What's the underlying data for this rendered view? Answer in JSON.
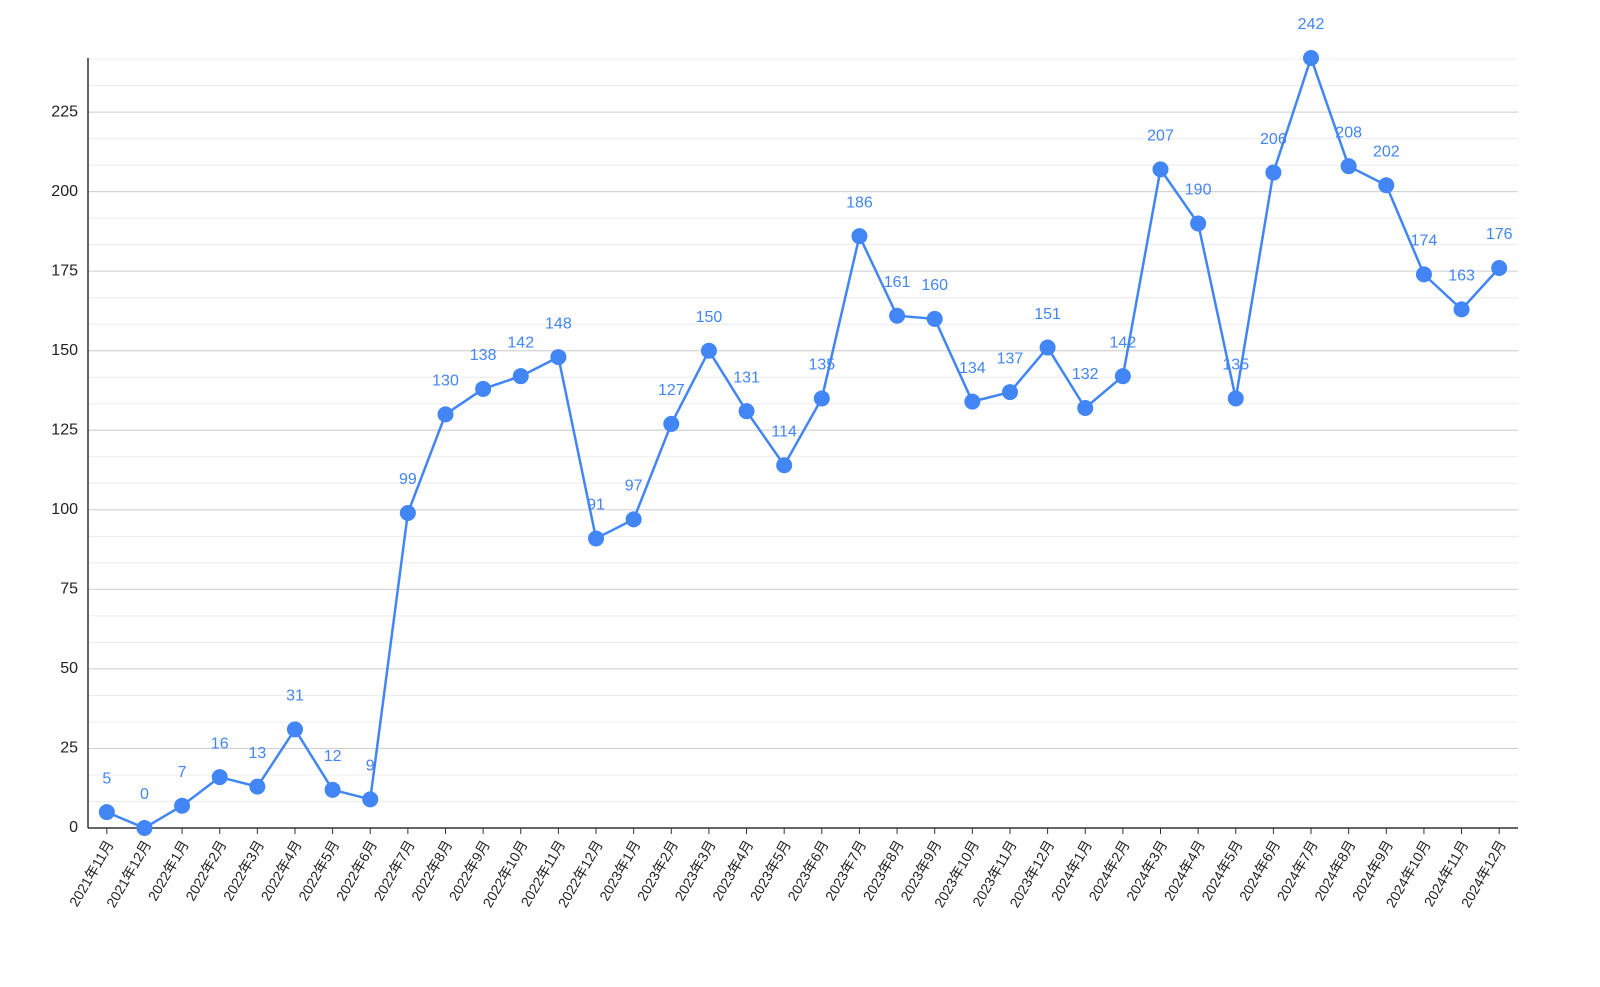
{
  "chart_data": {
    "type": "line",
    "categories": [
      "2021年11月",
      "2021年12月",
      "2022年1月",
      "2022年2月",
      "2022年3月",
      "2022年4月",
      "2022年5月",
      "2022年6月",
      "2022年7月",
      "2022年8月",
      "2022年9月",
      "2022年10月",
      "2022年11月",
      "2022年12月",
      "2023年1月",
      "2023年2月",
      "2023年3月",
      "2023年4月",
      "2023年5月",
      "2023年6月",
      "2023年7月",
      "2023年8月",
      "2023年9月",
      "2023年10月",
      "2023年11月",
      "2023年12月",
      "2024年1月",
      "2024年2月",
      "2024年3月",
      "2024年4月",
      "2024年5月",
      "2024年6月",
      "2024年7月",
      "2024年8月",
      "2024年9月",
      "2024年10月",
      "2024年11月",
      "2024年12月"
    ],
    "values": [
      5,
      0,
      7,
      16,
      13,
      31,
      12,
      9,
      99,
      130,
      138,
      142,
      148,
      91,
      97,
      127,
      150,
      131,
      114,
      135,
      186,
      161,
      160,
      134,
      137,
      151,
      132,
      142,
      207,
      190,
      135,
      206,
      242,
      208,
      202,
      174,
      163,
      176
    ],
    "color": "#4285f4",
    "ylim": [
      0,
      242
    ],
    "yticks": [
      0,
      25,
      50,
      75,
      100,
      125,
      150,
      175,
      200,
      225
    ],
    "grid": true
  }
}
